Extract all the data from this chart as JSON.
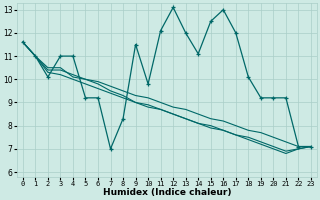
{
  "xlabel": "Humidex (Indice chaleur)",
  "xlim": [
    -0.5,
    23.5
  ],
  "ylim": [
    5.8,
    13.3
  ],
  "yticks": [
    6,
    7,
    8,
    9,
    10,
    11,
    12,
    13
  ],
  "xticks": [
    0,
    1,
    2,
    3,
    4,
    5,
    6,
    7,
    8,
    9,
    10,
    11,
    12,
    13,
    14,
    15,
    16,
    17,
    18,
    19,
    20,
    21,
    22,
    23
  ],
  "bg_color": "#ceeae4",
  "grid_color": "#aacec8",
  "line_color": "#006868",
  "line1": [
    11.6,
    11.0,
    10.1,
    11.0,
    11.0,
    9.2,
    9.2,
    7.0,
    8.3,
    11.5,
    9.8,
    12.1,
    13.1,
    12.0,
    11.1,
    12.5,
    13.0,
    12.0,
    10.1,
    9.2,
    9.2,
    9.2,
    7.1,
    7.1
  ],
  "line2": [
    11.6,
    11.0,
    10.5,
    10.5,
    10.1,
    10.0,
    9.8,
    9.5,
    9.3,
    9.0,
    8.9,
    8.7,
    8.5,
    8.3,
    8.1,
    7.9,
    7.8,
    7.6,
    7.4,
    7.2,
    7.0,
    6.8,
    7.0,
    7.1
  ],
  "line3": [
    11.6,
    11.0,
    10.4,
    10.4,
    10.2,
    10.0,
    9.9,
    9.7,
    9.5,
    9.3,
    9.2,
    9.0,
    8.8,
    8.7,
    8.5,
    8.3,
    8.2,
    8.0,
    7.8,
    7.7,
    7.5,
    7.3,
    7.1,
    7.1
  ],
  "line4": [
    11.6,
    11.0,
    10.3,
    10.2,
    10.0,
    9.8,
    9.6,
    9.4,
    9.2,
    9.0,
    8.8,
    8.7,
    8.5,
    8.3,
    8.1,
    8.0,
    7.8,
    7.6,
    7.5,
    7.3,
    7.1,
    6.9,
    7.0,
    7.1
  ]
}
